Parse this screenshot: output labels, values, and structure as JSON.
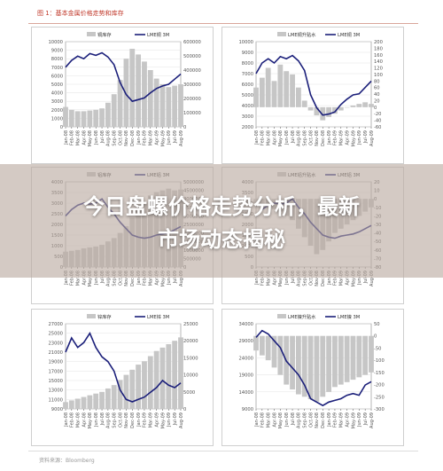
{
  "page": {
    "title": "图 1：基本金属价格走势和库存",
    "source": "资料来源：Bloomberg",
    "banner_line1": "今日盘螺价格走势分析，最新",
    "banner_line2": "市场动态揭秘"
  },
  "colors": {
    "line": "#1b1f7a",
    "area": "#c6c6c6",
    "grid": "#e3e3e3",
    "axis": "#555555"
  },
  "months": [
    "Jan-08",
    "Feb-08",
    "Mar-08",
    "Apr-08",
    "May-08",
    "Jun-08",
    "Jul-08",
    "Aug-08",
    "Sep-08",
    "Oct-08",
    "Nov-08",
    "Dec-08",
    "Jan-09",
    "Feb-09",
    "Mar-09",
    "Apr-09",
    "May-09",
    "Jun-09",
    "Jul-09",
    "Aug-09"
  ],
  "chart_data": [
    {
      "type": "line",
      "legend": [
        "铜库存",
        "LME铜 3M"
      ],
      "y_left": {
        "min": 0,
        "max": 10000,
        "ticks": [
          0,
          1000,
          2000,
          3000,
          4000,
          5000,
          6000,
          7000,
          8000,
          9000,
          10000
        ]
      },
      "y_right": {
        "min": 0,
        "max": 600000,
        "ticks": [
          0,
          100000,
          200000,
          300000,
          400000,
          500000,
          600000
        ]
      },
      "line_values": [
        7000,
        7800,
        8300,
        8000,
        8600,
        8400,
        8700,
        8200,
        7300,
        5200,
        3800,
        3000,
        3200,
        3400,
        4000,
        4500,
        4800,
        5000,
        5600,
        6200
      ],
      "area_values": [
        140000,
        120000,
        110000,
        110000,
        115000,
        120000,
        130000,
        170000,
        230000,
        330000,
        480000,
        550000,
        510000,
        460000,
        400000,
        340000,
        300000,
        280000,
        290000,
        300000
      ]
    },
    {
      "type": "line",
      "legend": [
        "LME铜升贴水",
        "LME铜 3M"
      ],
      "y_left": {
        "min": 2000,
        "max": 10000,
        "ticks": [
          2000,
          3000,
          4000,
          5000,
          6000,
          7000,
          8000,
          9000,
          10000
        ]
      },
      "y_right": {
        "min": -60,
        "max": 200,
        "ticks": [
          -60,
          -40,
          -20,
          0,
          20,
          40,
          60,
          80,
          100,
          120,
          140,
          160,
          180,
          200
        ]
      },
      "zero_right": 0,
      "line_values": [
        7000,
        8000,
        8400,
        8000,
        8600,
        8400,
        8700,
        8200,
        7300,
        5000,
        3800,
        3100,
        3200,
        3400,
        4100,
        4600,
        5000,
        5100,
        5700,
        6300
      ],
      "area_values": [
        60,
        90,
        120,
        80,
        130,
        110,
        100,
        60,
        20,
        -10,
        -25,
        -40,
        -30,
        -20,
        -10,
        0,
        5,
        10,
        15,
        10
      ]
    },
    {
      "type": "line",
      "legend": [
        "铝库存",
        "LME铝 3M"
      ],
      "y_left": {
        "min": 0,
        "max": 4000,
        "ticks": [
          0,
          500,
          1000,
          1500,
          2000,
          2500,
          3000,
          3500,
          4000
        ]
      },
      "y_right": {
        "min": 0,
        "max": 5000000,
        "ticks": [
          0,
          500000,
          1000000,
          1500000,
          2000000,
          2500000,
          3000000,
          3500000,
          4000000,
          4500000,
          5000000
        ]
      },
      "line_values": [
        2400,
        2700,
        2900,
        3000,
        2950,
        3000,
        3200,
        2800,
        2500,
        2100,
        1800,
        1500,
        1400,
        1350,
        1400,
        1500,
        1550,
        1600,
        1750,
        1900
      ],
      "area_values": [
        900000,
        950000,
        1000000,
        1100000,
        1150000,
        1200000,
        1300000,
        1500000,
        1700000,
        2000000,
        2400000,
        2900000,
        3300000,
        3800000,
        4200000,
        4400000,
        4500000,
        4600000,
        4500000,
        4550000
      ]
    },
    {
      "type": "line",
      "legend": [
        "LME铝升贴水",
        "LME铝 3M"
      ],
      "y_left": {
        "min": 0,
        "max": 4000,
        "ticks": [
          0,
          500,
          1000,
          1500,
          2000,
          2500,
          3000,
          3500,
          4000
        ]
      },
      "y_right": {
        "min": -80,
        "max": 20,
        "ticks": [
          -80,
          -70,
          -60,
          -50,
          -40,
          -30,
          -20,
          -10,
          0,
          10,
          20
        ]
      },
      "zero_right": 0,
      "line_values": [
        2400,
        2700,
        2900,
        3000,
        2950,
        3000,
        3200,
        2800,
        2500,
        2100,
        1800,
        1500,
        1400,
        1350,
        1450,
        1500,
        1550,
        1650,
        1800,
        1950
      ],
      "area_values": [
        -5,
        -8,
        -10,
        -12,
        -15,
        -20,
        -25,
        -35,
        -45,
        -55,
        -65,
        -60,
        -50,
        -40,
        -35,
        -30,
        -25,
        -20,
        -15,
        -10
      ]
    },
    {
      "type": "line",
      "legend": [
        "锌库存",
        "LME锌 3M"
      ],
      "y_left": {
        "min": 9000,
        "max": 27000,
        "ticks": [
          9000,
          11000,
          13000,
          15000,
          17000,
          19000,
          21000,
          23000,
          25000,
          27000
        ]
      },
      "y_right": {
        "min": 0,
        "max": 25000,
        "ticks": [
          0,
          5000,
          10000,
          15000,
          20000,
          25000
        ]
      },
      "line_values": [
        21000,
        24000,
        22000,
        23000,
        25000,
        22000,
        20000,
        19000,
        17000,
        13000,
        11000,
        10500,
        11000,
        11500,
        12500,
        13500,
        15000,
        14000,
        13500,
        14500
      ],
      "area_values": [
        2000,
        2500,
        3000,
        3500,
        4000,
        4500,
        5000,
        6000,
        7000,
        8500,
        10000,
        11500,
        13000,
        14000,
        15500,
        17000,
        18000,
        19000,
        20000,
        21000
      ]
    },
    {
      "type": "line",
      "legend": [
        "LME镍升贴水",
        "LME镍 3M"
      ],
      "y_left": {
        "min": 9000,
        "max": 34000,
        "ticks": [
          9000,
          14000,
          19000,
          24000,
          29000,
          34000
        ]
      },
      "y_right": {
        "min": -300,
        "max": 50,
        "ticks": [
          -300,
          -250,
          -200,
          -150,
          -100,
          -50,
          0,
          50
        ]
      },
      "zero_right": 0,
      "line_values": [
        30000,
        32000,
        31000,
        29000,
        27000,
        23000,
        21000,
        19000,
        16000,
        12000,
        11000,
        10000,
        11000,
        11500,
        12000,
        13000,
        13500,
        13000,
        16000,
        17000
      ],
      "area_values": [
        -60,
        -80,
        -100,
        -130,
        -160,
        -200,
        -220,
        -240,
        -250,
        -260,
        -270,
        -250,
        -230,
        -210,
        -200,
        -190,
        -180,
        -170,
        -160,
        -150
      ]
    }
  ]
}
